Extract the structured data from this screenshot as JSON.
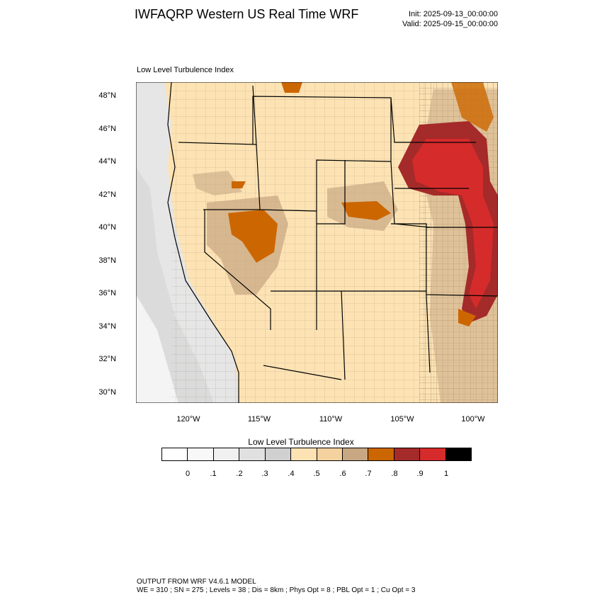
{
  "header": {
    "title": "IWFAQRP Western US Real Time WRF",
    "init": "Init: 2025-09-13_00:00:00",
    "valid": "Valid: 2025-09-15_00:00:00"
  },
  "map": {
    "subtitle": "Low Level Turbulence Index",
    "lat_labels": [
      "48°N",
      "46°N",
      "44°N",
      "42°N",
      "40°N",
      "38°N",
      "36°N",
      "34°N",
      "32°N",
      "30°N"
    ],
    "lon_labels": [
      "120°W",
      "115°W",
      "110°W",
      "105°W",
      "100°W"
    ],
    "colors": {
      "ocean_gray": "#dcdcdc",
      "land_base": "#fde3b4",
      "land_mid": "#f5d19f",
      "land_tan": "#c8a883",
      "orange": "#cc6600",
      "dark_red": "#a52a2a",
      "red": "#d62b2b",
      "border": "#000000"
    }
  },
  "colorbar": {
    "title": "Low Level Turbulence Index",
    "colors": [
      "#ffffff",
      "#f8f8f8",
      "#f0f0f0",
      "#e0e0e0",
      "#d0d0d0",
      "#fde3b4",
      "#f5d19f",
      "#c8a883",
      "#cc6600",
      "#a52a2a",
      "#d62b2b",
      "#000000"
    ],
    "tick_labels": [
      "0",
      ".1",
      ".2",
      ".3",
      ".4",
      ".5",
      ".6",
      ".7",
      ".8",
      ".9",
      "1"
    ]
  },
  "footer": {
    "line1": "OUTPUT FROM WRF V4.6.1 MODEL",
    "line2": "WE = 310 ; SN = 275 ; Levels = 38 ; Dis = 8km ; Phys Opt = 8 ; PBL Opt = 1 ; Cu Opt = 3"
  }
}
